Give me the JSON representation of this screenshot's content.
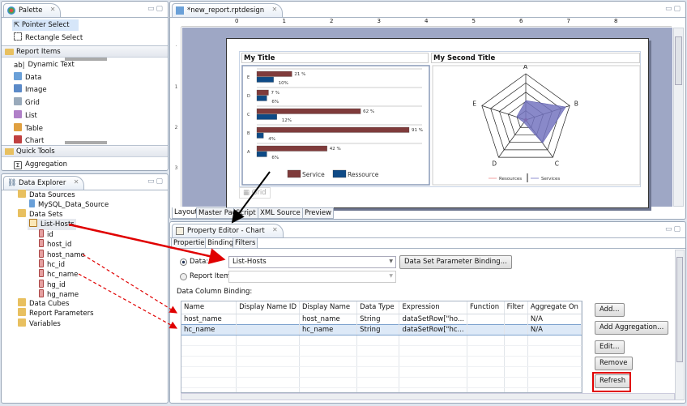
{
  "palette": {
    "title": "Palette",
    "tools": [
      "Pointer Select",
      "Rectangle Select"
    ],
    "report_items_label": "Report Items",
    "report_items": [
      {
        "label": "Dynamic Text",
        "icon": "dynamic-text-icon"
      },
      {
        "label": "Data",
        "icon": "data-icon"
      },
      {
        "label": "Image",
        "icon": "image-icon"
      },
      {
        "label": "Grid",
        "icon": "grid-icon"
      },
      {
        "label": "List",
        "icon": "list-icon"
      },
      {
        "label": "Table",
        "icon": "table-icon"
      },
      {
        "label": "Chart",
        "icon": "chart-icon"
      }
    ],
    "quick_tools_label": "Quick Tools",
    "quick_tools": [
      "Aggregation"
    ]
  },
  "data_explorer": {
    "title": "Data Explorer",
    "data_sources": "Data Sources",
    "data_source_items": [
      "MySQL_Data_Source"
    ],
    "data_sets": "Data Sets",
    "data_set": "List-Hosts",
    "columns": [
      "id",
      "host_id",
      "host_name",
      "hc_id",
      "hc_name",
      "hg_id",
      "hg_name"
    ],
    "others": [
      "Data Cubes",
      "Report Parameters",
      "Variables"
    ]
  },
  "editor": {
    "tab": "*new_report.rptdesign",
    "ruler": [
      "0",
      "1",
      "2",
      "3",
      "4",
      "5",
      "6",
      "7",
      "8"
    ],
    "grid_label": "Grid",
    "bottom_tabs": [
      "Layout",
      "Master Page",
      "Script",
      "XML Source",
      "Preview"
    ],
    "cell1_title": "My Title",
    "cell2_title": "My Second Title"
  },
  "property_editor": {
    "title": "Property Editor - Chart",
    "tabs": [
      "Properties",
      "Binding",
      "Filters"
    ],
    "active_tab": "Binding",
    "data_label": "Data:",
    "data_value": "List-Hosts",
    "data_selected": true,
    "report_item_label": "Report Item:",
    "report_item_value": "",
    "param_binding_button": "Data Set Parameter Binding...",
    "binding_label": "Data Column Binding:",
    "columns": [
      "Name",
      "Display Name ID",
      "Display Name",
      "Data Type",
      "Expression",
      "Function",
      "Filter",
      "Aggregate On"
    ],
    "rows": [
      [
        "host_name",
        "",
        "host_name",
        "String",
        "dataSetRow[\"ho...",
        "",
        "",
        "N/A"
      ],
      [
        "hc_name",
        "",
        "hc_name",
        "String",
        "dataSetRow[\"hc...",
        "",
        "",
        "N/A"
      ]
    ],
    "buttons": [
      "Add...",
      "Add Aggregation...",
      "Edit...",
      "Remove",
      "Refresh"
    ]
  },
  "colors": {
    "service": "#7f3b3b",
    "resource": "#0e4a86",
    "radar_fill": "#7474c0",
    "highlight": "#e00000"
  },
  "chart_data": [
    {
      "type": "bar",
      "orientation": "horizontal",
      "categories": [
        "E",
        "D",
        "C",
        "B",
        "A"
      ],
      "series": [
        {
          "name": "Service",
          "values": [
            21,
            7,
            62,
            91,
            42
          ],
          "labels": [
            "21 %",
            "7 %",
            "62 %",
            "91 %",
            "42 %"
          ]
        },
        {
          "name": "Ressource",
          "values": [
            10,
            6,
            12,
            4,
            6
          ],
          "labels": [
            "10%",
            "6%",
            "12%",
            "4%",
            "6%"
          ]
        }
      ],
      "legend": "bottom"
    },
    {
      "type": "radar",
      "categories": [
        "A",
        "B",
        "C",
        "D",
        "E"
      ],
      "series": [
        {
          "name": "Resources",
          "values": [
            2,
            3,
            2,
            2,
            3
          ]
        },
        {
          "name": "Services",
          "values": [
            42,
            91,
            62,
            7,
            21
          ]
        }
      ],
      "legend": "bottom"
    }
  ]
}
